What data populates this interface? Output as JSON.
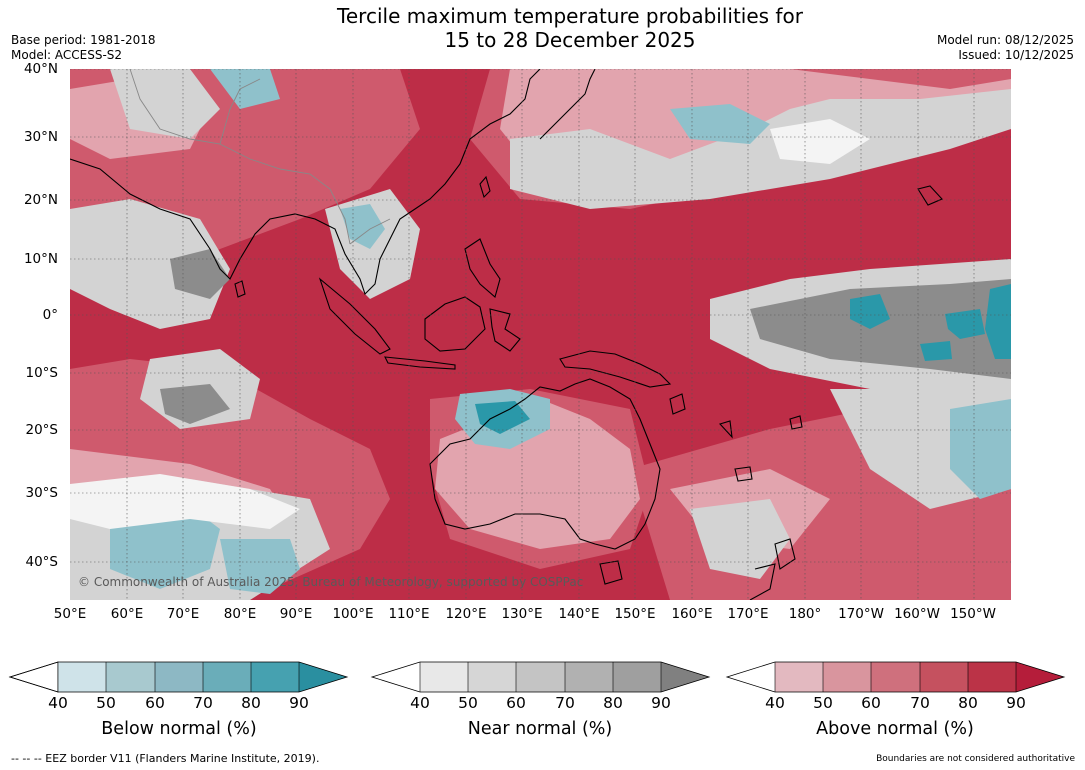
{
  "title": {
    "line1": "Tercile maximum temperature probabilities for",
    "line2": "15 to 28 December 2025"
  },
  "meta": {
    "base_period": "Base period: 1981-2018",
    "model": "Model: ACCESS-S2",
    "model_run": "Model run: 08/12/2025",
    "issued": "Issued: 10/12/2025"
  },
  "map": {
    "region": "Indo-Pacific",
    "lat_labels": [
      "40°N",
      "30°N",
      "20°N",
      "10°N",
      "0°",
      "10°S",
      "20°S",
      "30°S",
      "40°S"
    ],
    "lon_labels": [
      "50°E",
      "60°E",
      "70°E",
      "80°E",
      "90°E",
      "100°E",
      "110°E",
      "120°E",
      "130°E",
      "140°E",
      "150°E",
      "160°E",
      "170°E",
      "180°",
      "170°W",
      "160°W",
      "150°W"
    ],
    "copyright": "© Commonwealth of Australia 2025, Bureau of Meteorology, supported by COSPPac"
  },
  "colorbars": [
    {
      "label": "Below normal (%)",
      "ticks": [
        "40",
        "50",
        "60",
        "70",
        "80",
        "90"
      ],
      "colors": [
        "#ffffff",
        "#cfe3e9",
        "#a8c9cf",
        "#8db8c4",
        "#6aadb9",
        "#46a1b0",
        "#2a8fa0"
      ]
    },
    {
      "label": "Near normal (%)",
      "ticks": [
        "40",
        "50",
        "60",
        "70",
        "80",
        "90"
      ],
      "colors": [
        "#ffffff",
        "#e8e8e8",
        "#d6d6d6",
        "#c4c4c4",
        "#b1b1b1",
        "#9f9f9f",
        "#808080"
      ]
    },
    {
      "label": "Above normal (%)",
      "ticks": [
        "40",
        "50",
        "60",
        "70",
        "80",
        "90"
      ],
      "colors": [
        "#ffffff",
        "#e3b9c0",
        "#d9959e",
        "#cf707d",
        "#c5515f",
        "#bb3347",
        "#b51d3a"
      ]
    }
  ],
  "footer": {
    "eez": "--  --  -- EEZ border V11 (Flanders Marine Institute, 2019).",
    "disclaimer": "Boundaries are not considered authoritative"
  },
  "colors": {
    "above_strong": "#b51d3a",
    "above_mid": "#cf5366",
    "above_light": "#e2a4ae",
    "near": "#d3d3d3",
    "near_dark": "#8c8c8c",
    "below": "#8fc1cb",
    "below_strong": "#2a98a9",
    "land_line": "#000000"
  }
}
